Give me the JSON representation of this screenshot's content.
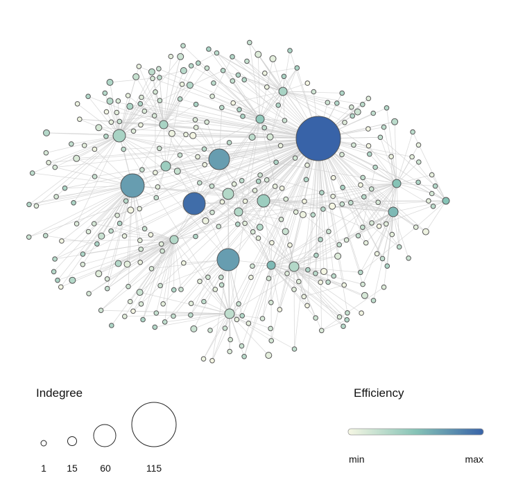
{
  "legend": {
    "size_title": "Indegree",
    "size_items": [
      {
        "label": "1",
        "value": 1
      },
      {
        "label": "15",
        "value": 15
      },
      {
        "label": "60",
        "value": 60
      },
      {
        "label": "115",
        "value": 115
      }
    ],
    "color_title": "Efficiency",
    "color_min_label": "min",
    "color_max_label": "max"
  },
  "colors": {
    "min": "#f6f7e4",
    "mid": "#86c3b6",
    "max": "#3863a8",
    "node_stroke": "#555555",
    "edge": "#cfcfcf"
  }
}
